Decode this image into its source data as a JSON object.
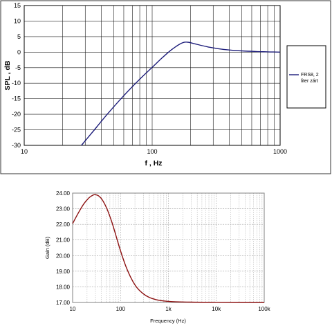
{
  "chart_data": [
    {
      "type": "line",
      "xlabel": "f , Hz",
      "ylabel": "SPL , dB",
      "xscale": "log",
      "xlim": [
        10,
        1000
      ],
      "ylim": [
        -30,
        15
      ],
      "x_ticks": [
        10,
        100,
        1000
      ],
      "x_tick_labels": [
        "10",
        "100",
        "1000"
      ],
      "y_ticks": [
        -30,
        -25,
        -20,
        -15,
        -10,
        -5,
        0,
        5,
        10,
        15
      ],
      "y_tick_labels": [
        "-30",
        "-25",
        "-20",
        "-15",
        "-10",
        "-5",
        "0",
        "5",
        "10",
        "15"
      ],
      "grid": true,
      "legend_position": "right",
      "series_color": "#1c1c7a",
      "series": [
        {
          "name": "FRS8, 2 liter zárt",
          "x": [
            28,
            35,
            45,
            60,
            80,
            100,
            120,
            140,
            160,
            175,
            190,
            210,
            240,
            280,
            330,
            400,
            500,
            650,
            800,
            1000
          ],
          "y": [
            -30,
            -25.2,
            -19.8,
            -14,
            -8.7,
            -4.9,
            -1.8,
            0.6,
            2.3,
            3.1,
            3.2,
            2.8,
            2.2,
            1.6,
            1.1,
            0.7,
            0.4,
            0.2,
            0.1,
            0
          ]
        }
      ]
    },
    {
      "type": "line",
      "xlabel": "Frequency (Hz)",
      "ylabel": "Gain (dB)",
      "xscale": "log",
      "xlim": [
        10,
        100000
      ],
      "ylim": [
        17,
        24
      ],
      "x_ticks": [
        10,
        100,
        1000,
        10000,
        100000
      ],
      "x_tick_labels": [
        "10",
        "100",
        "1k",
        "10k",
        "100k"
      ],
      "y_ticks": [
        17,
        18,
        19,
        20,
        21,
        22,
        23,
        24
      ],
      "y_tick_labels": [
        "17.00",
        "18.00",
        "19.00",
        "20.00",
        "21.00",
        "22.00",
        "23.00",
        "24.00"
      ],
      "grid": true,
      "series_color": "#8b1010",
      "series": [
        {
          "x": [
            10,
            13,
            17,
            22,
            27,
            30,
            35,
            42,
            52,
            65,
            80,
            100,
            130,
            170,
            220,
            300,
            400,
            550,
            700,
            1000,
            1500,
            3000,
            10000,
            100000
          ],
          "y": [
            22.05,
            22.7,
            23.3,
            23.7,
            23.88,
            23.9,
            23.82,
            23.55,
            23.0,
            22.2,
            21.3,
            20.3,
            19.3,
            18.5,
            17.95,
            17.55,
            17.32,
            17.18,
            17.12,
            17.07,
            17.04,
            17.02,
            17.01,
            17.0
          ]
        }
      ]
    }
  ]
}
